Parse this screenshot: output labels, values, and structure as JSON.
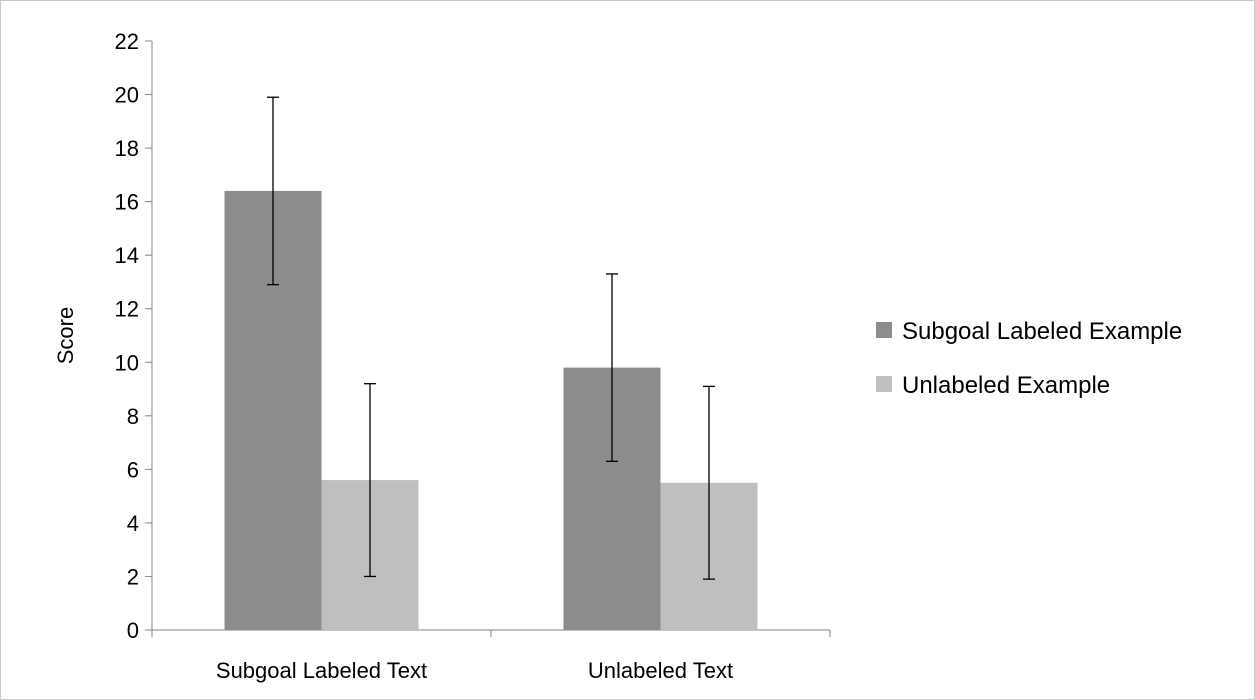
{
  "chart_data": {
    "type": "bar",
    "title": "",
    "xlabel": "",
    "ylabel": "Score",
    "ylim": [
      0,
      22
    ],
    "yticks": [
      0,
      2,
      4,
      6,
      8,
      10,
      12,
      14,
      16,
      18,
      20,
      22
    ],
    "categories": [
      "Subgoal Labeled Text",
      "Unlabeled Text"
    ],
    "series": [
      {
        "name": "Subgoal Labeled Example",
        "color": "#8c8c8c",
        "values": [
          16.4,
          9.8
        ],
        "error_low": [
          12.9,
          6.3
        ],
        "error_high": [
          19.9,
          13.3
        ]
      },
      {
        "name": "Unlabeled Example",
        "color": "#bfbfbf",
        "values": [
          5.6,
          5.5
        ],
        "error_low": [
          2.0,
          1.9
        ],
        "error_high": [
          9.2,
          9.1
        ]
      }
    ],
    "grid": false,
    "legend": "right"
  }
}
